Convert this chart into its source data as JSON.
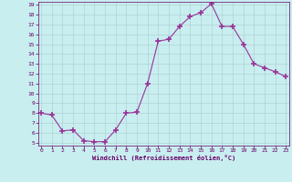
{
  "x": [
    0,
    1,
    2,
    3,
    4,
    5,
    6,
    7,
    8,
    9,
    10,
    11,
    12,
    13,
    14,
    15,
    16,
    17,
    18,
    19,
    20,
    21,
    22,
    23
  ],
  "y": [
    8.0,
    7.8,
    6.2,
    6.3,
    5.2,
    5.1,
    5.1,
    6.3,
    8.0,
    8.1,
    11.0,
    15.3,
    15.5,
    16.8,
    17.8,
    18.2,
    19.1,
    16.8,
    16.8,
    15.0,
    13.0,
    12.6,
    12.2,
    11.7
  ],
  "xlabel": "Windchill (Refroidissement éolien,°C)",
  "ylim_min": 5,
  "ylim_max": 19,
  "xlim_min": 0,
  "xlim_max": 23,
  "line_color": "#993399",
  "marker_color": "#993399",
  "bg_color": "#c8eef0",
  "grid_color": "#aacccc",
  "text_color": "#660066",
  "yticks": [
    5,
    6,
    7,
    8,
    9,
    10,
    11,
    12,
    13,
    14,
    15,
    16,
    17,
    18,
    19
  ],
  "xticks": [
    0,
    1,
    2,
    3,
    4,
    5,
    6,
    7,
    8,
    9,
    10,
    11,
    12,
    13,
    14,
    15,
    16,
    17,
    18,
    19,
    20,
    21,
    22,
    23
  ]
}
